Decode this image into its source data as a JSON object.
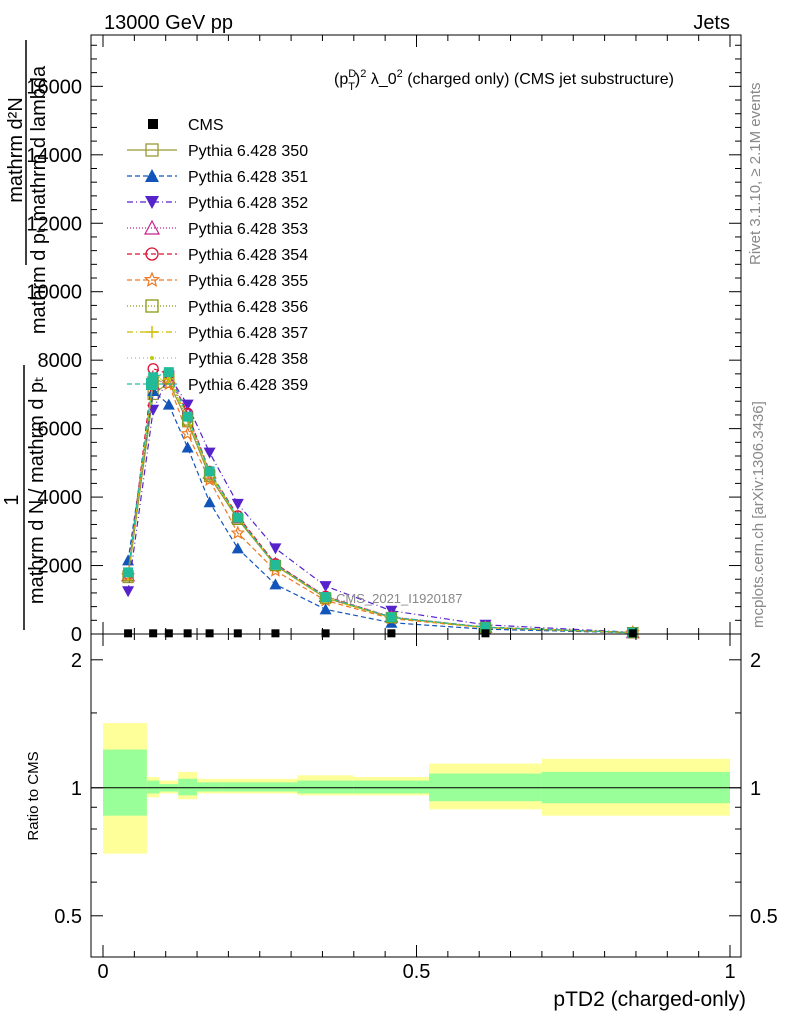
{
  "header": {
    "left": "13000 GeV pp",
    "right": "Jets"
  },
  "side_text": {
    "rivet": "Rivet 3.1.10, ≥ 2.1M events",
    "mcplots": "mcplots.cern.ch [arXiv:1306.3436]"
  },
  "chart_data": {
    "type": "line",
    "title": "(p_T^D)^2 λ_0^2 (charged only) (CMS jet substructure)",
    "title_parts": {
      "p": "(p",
      "sup_d": "D",
      "sub_t": "T",
      "close": ")",
      "sup_2": "2",
      "rest": " λ_0",
      "sup_2b": "2",
      "tail": " (charged only) (CMS jet substructure)"
    },
    "ylabel_top": {
      "numer": "mathrm d²N",
      "denom": "mathrm d pₜ mathrm d lambda"
    },
    "ylabel_main": {
      "one": "1",
      "numer": "mathrm d N / mathrm d pₜ",
      "denom": "mathrm d pₜ mathrm d lambda"
    },
    "xlabel": "pTD2 (charged-only)",
    "ratio_ylabel": "Ratio to CMS",
    "watermark": "CMS_2021_I1920187",
    "xlim": [
      0,
      1
    ],
    "ylim": [
      0,
      17500
    ],
    "ratio_ylim": [
      0.4,
      2.3
    ],
    "y_ticks": [
      {
        "value": 0,
        "label": "0"
      },
      {
        "value": 2000,
        "label": "2000"
      },
      {
        "value": 4000,
        "label": "4000"
      },
      {
        "value": 6000,
        "label": "6000"
      },
      {
        "value": 8000,
        "label": "8000"
      },
      {
        "value": 10000,
        "label": "10000"
      },
      {
        "value": 12000,
        "label": "12000"
      },
      {
        "value": 14000,
        "label": "14000"
      },
      {
        "value": 16000,
        "label": "16000"
      }
    ],
    "x_ticks": [
      {
        "value": 0,
        "label": "0"
      },
      {
        "value": 0.5,
        "label": "0.5"
      },
      {
        "value": 1,
        "label": "1"
      }
    ],
    "ratio_ticks": [
      {
        "value": 0.5,
        "label": "0.5"
      },
      {
        "value": 1,
        "label": "1"
      },
      {
        "value": 2,
        "label": "2"
      }
    ],
    "x": [
      0.04,
      0.08,
      0.105,
      0.135,
      0.17,
      0.215,
      0.275,
      0.355,
      0.46,
      0.61,
      0.845
    ],
    "data": {
      "name": "CMS",
      "values": [
        20,
        20,
        20,
        20,
        20,
        20,
        20,
        20,
        20,
        20,
        20
      ]
    },
    "ratio_bands": [
      {
        "x0": 0.0,
        "x1": 0.07,
        "green": [
          0.86,
          1.23
        ],
        "yellow": [
          0.7,
          1.42
        ]
      },
      {
        "x0": 0.07,
        "x1": 0.09,
        "green": [
          0.97,
          1.04
        ],
        "yellow": [
          0.95,
          1.06
        ]
      },
      {
        "x0": 0.09,
        "x1": 0.12,
        "green": [
          0.98,
          1.02
        ],
        "yellow": [
          0.97,
          1.04
        ]
      },
      {
        "x0": 0.12,
        "x1": 0.15,
        "green": [
          0.96,
          1.05
        ],
        "yellow": [
          0.94,
          1.09
        ]
      },
      {
        "x0": 0.15,
        "x1": 0.19,
        "green": [
          0.98,
          1.03
        ],
        "yellow": [
          0.97,
          1.05
        ]
      },
      {
        "x0": 0.19,
        "x1": 0.24,
        "green": [
          0.98,
          1.03
        ],
        "yellow": [
          0.97,
          1.05
        ]
      },
      {
        "x0": 0.24,
        "x1": 0.31,
        "green": [
          0.98,
          1.03
        ],
        "yellow": [
          0.97,
          1.05
        ]
      },
      {
        "x0": 0.31,
        "x1": 0.4,
        "green": [
          0.97,
          1.04
        ],
        "yellow": [
          0.96,
          1.07
        ]
      },
      {
        "x0": 0.4,
        "x1": 0.52,
        "green": [
          0.97,
          1.04
        ],
        "yellow": [
          0.96,
          1.06
        ]
      },
      {
        "x0": 0.52,
        "x1": 0.7,
        "green": [
          0.93,
          1.08
        ],
        "yellow": [
          0.89,
          1.14
        ]
      },
      {
        "x0": 0.7,
        "x1": 1.0,
        "green": [
          0.92,
          1.09
        ],
        "yellow": [
          0.86,
          1.17
        ]
      }
    ],
    "series": [
      {
        "name": "Pythia 6.428 350",
        "color": "#999933",
        "dash": "",
        "marker": "square-open",
        "values": [
          1650,
          7000,
          7350,
          6200,
          4600,
          3350,
          2000,
          1050,
          480,
          190,
          40
        ]
      },
      {
        "name": "Pythia 6.428 351",
        "color": "#1155bb",
        "dash": "5,3",
        "marker": "triangle-up",
        "values": [
          2150,
          7100,
          6700,
          5450,
          3850,
          2500,
          1450,
          720,
          330,
          140,
          35
        ]
      },
      {
        "name": "Pythia 6.428 352",
        "color": "#5522cc",
        "dash": "6,3,1,3",
        "marker": "triangle-down",
        "values": [
          1250,
          6550,
          7550,
          6700,
          5300,
          3800,
          2500,
          1400,
          680,
          270,
          50
        ]
      },
      {
        "name": "Pythia 6.428 353",
        "color": "#cc2288",
        "dash": "1,2",
        "marker": "triangle-open",
        "values": [
          1700,
          7300,
          7450,
          6450,
          4700,
          3400,
          2050,
          1100,
          500,
          200,
          40
        ]
      },
      {
        "name": "Pythia 6.428 354",
        "color": "#dd1133",
        "dash": "5,3",
        "marker": "circle-open",
        "values": [
          1750,
          7750,
          7600,
          6450,
          4750,
          3450,
          2050,
          1100,
          490,
          200,
          40
        ]
      },
      {
        "name": "Pythia 6.428 355",
        "color": "#ee7722",
        "dash": "5,3",
        "marker": "star",
        "values": [
          1700,
          7450,
          7300,
          5850,
          4500,
          2950,
          1850,
          980,
          450,
          180,
          40
        ]
      },
      {
        "name": "Pythia 6.428 356",
        "color": "#889911",
        "dash": "1,2",
        "marker": "square-open",
        "values": [
          1700,
          7350,
          7450,
          6250,
          4650,
          3350,
          2000,
          1050,
          480,
          190,
          40
        ]
      },
      {
        "name": "Pythia 6.428 357",
        "color": "#ccbb00",
        "dash": "6,3,1,3",
        "marker": "cross",
        "values": [
          1700,
          7400,
          7450,
          6300,
          4700,
          3400,
          2000,
          1060,
          480,
          190,
          40
        ]
      },
      {
        "name": "Pythia 6.428 358",
        "color": "#bbcc00",
        "dash": "1,3",
        "marker": "dot",
        "values": [
          1700,
          7400,
          7500,
          6300,
          4700,
          3400,
          2020,
          1060,
          480,
          190,
          40
        ]
      },
      {
        "name": "Pythia 6.428 359",
        "color": "#22bb99",
        "dash": "5,3",
        "marker": "square-fill",
        "values": [
          1800,
          7500,
          7650,
          6350,
          4750,
          3400,
          2020,
          1080,
          490,
          200,
          40
        ]
      }
    ]
  }
}
